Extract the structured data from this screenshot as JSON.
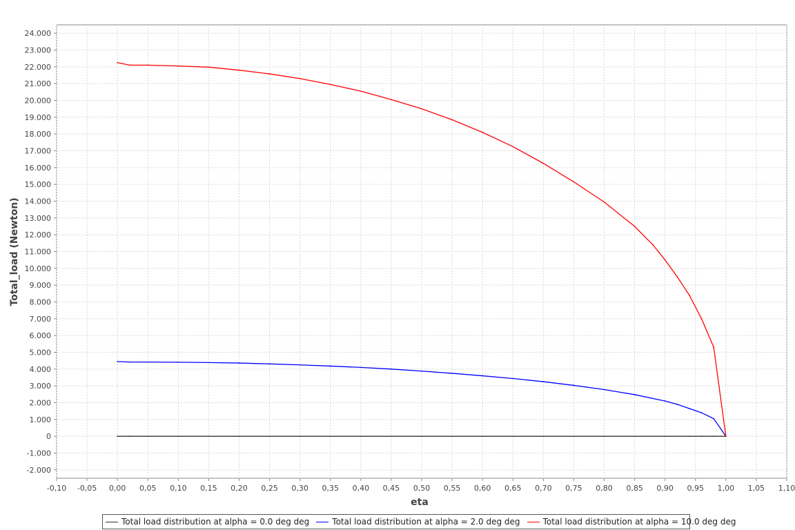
{
  "chart_data": {
    "type": "line",
    "xlabel": "eta",
    "ylabel": "Total_load (Newton)",
    "xlim": [
      -0.1,
      1.1
    ],
    "ylim": [
      -2500,
      24500
    ],
    "x_ticks": [
      "-0,10",
      "-0,05",
      "0,00",
      "0,05",
      "0,10",
      "0,15",
      "0,20",
      "0,25",
      "0,30",
      "0,35",
      "0,40",
      "0,45",
      "0,50",
      "0,55",
      "0,60",
      "0,65",
      "0,70",
      "0,75",
      "0,80",
      "0,85",
      "0,90",
      "0,95",
      "1,00",
      "1,05",
      "1,10"
    ],
    "y_ticks": [
      "-2.000",
      "-1.000",
      "0",
      "1.000",
      "2.000",
      "3.000",
      "4.000",
      "5.000",
      "6.000",
      "7.000",
      "8.000",
      "9.000",
      "10.000",
      "11.000",
      "12.000",
      "13.000",
      "14.000",
      "15.000",
      "16.000",
      "17.000",
      "18.000",
      "19.000",
      "20.000",
      "21.000",
      "22.000",
      "23.000",
      "24.000"
    ],
    "grid": true,
    "legend_position": "bottom",
    "series": [
      {
        "name": "Total load distribution at alpha = 0.0 deg deg",
        "color": "#333333",
        "x": [
          0.0,
          0.02,
          0.05,
          0.1,
          0.2,
          0.3,
          0.4,
          0.5,
          0.6,
          0.7,
          0.8,
          0.9,
          0.94,
          0.96,
          0.98,
          1.0
        ],
        "y": [
          0,
          0,
          0,
          0,
          0,
          0,
          0,
          0,
          0,
          0,
          0,
          0,
          0,
          0,
          0,
          0
        ]
      },
      {
        "name": "Total load distribution at alpha = 2.0 deg deg",
        "color": "#0000ff",
        "x": [
          0.0,
          0.02,
          0.05,
          0.1,
          0.15,
          0.2,
          0.25,
          0.3,
          0.35,
          0.4,
          0.45,
          0.5,
          0.55,
          0.6,
          0.65,
          0.7,
          0.75,
          0.8,
          0.85,
          0.9,
          0.92,
          0.94,
          0.96,
          0.98,
          1.0
        ],
        "y": [
          4450,
          4420,
          4420,
          4410,
          4390,
          4360,
          4310,
          4250,
          4180,
          4100,
          4000,
          3880,
          3750,
          3600,
          3440,
          3250,
          3030,
          2780,
          2480,
          2100,
          1900,
          1650,
          1400,
          1050,
          0
        ]
      },
      {
        "name": "Total load distribution at alpha = 10.0 deg deg",
        "color": "#ff0000",
        "x": [
          0.0,
          0.02,
          0.05,
          0.1,
          0.15,
          0.2,
          0.25,
          0.3,
          0.35,
          0.4,
          0.45,
          0.5,
          0.55,
          0.6,
          0.65,
          0.7,
          0.75,
          0.8,
          0.85,
          0.88,
          0.9,
          0.92,
          0.94,
          0.96,
          0.98,
          1.0
        ],
        "y": [
          22250,
          22100,
          22100,
          22050,
          21980,
          21800,
          21580,
          21300,
          20950,
          20550,
          20050,
          19500,
          18850,
          18100,
          17250,
          16250,
          15150,
          13950,
          12500,
          11400,
          10500,
          9500,
          8400,
          7000,
          5300,
          0
        ]
      }
    ]
  }
}
